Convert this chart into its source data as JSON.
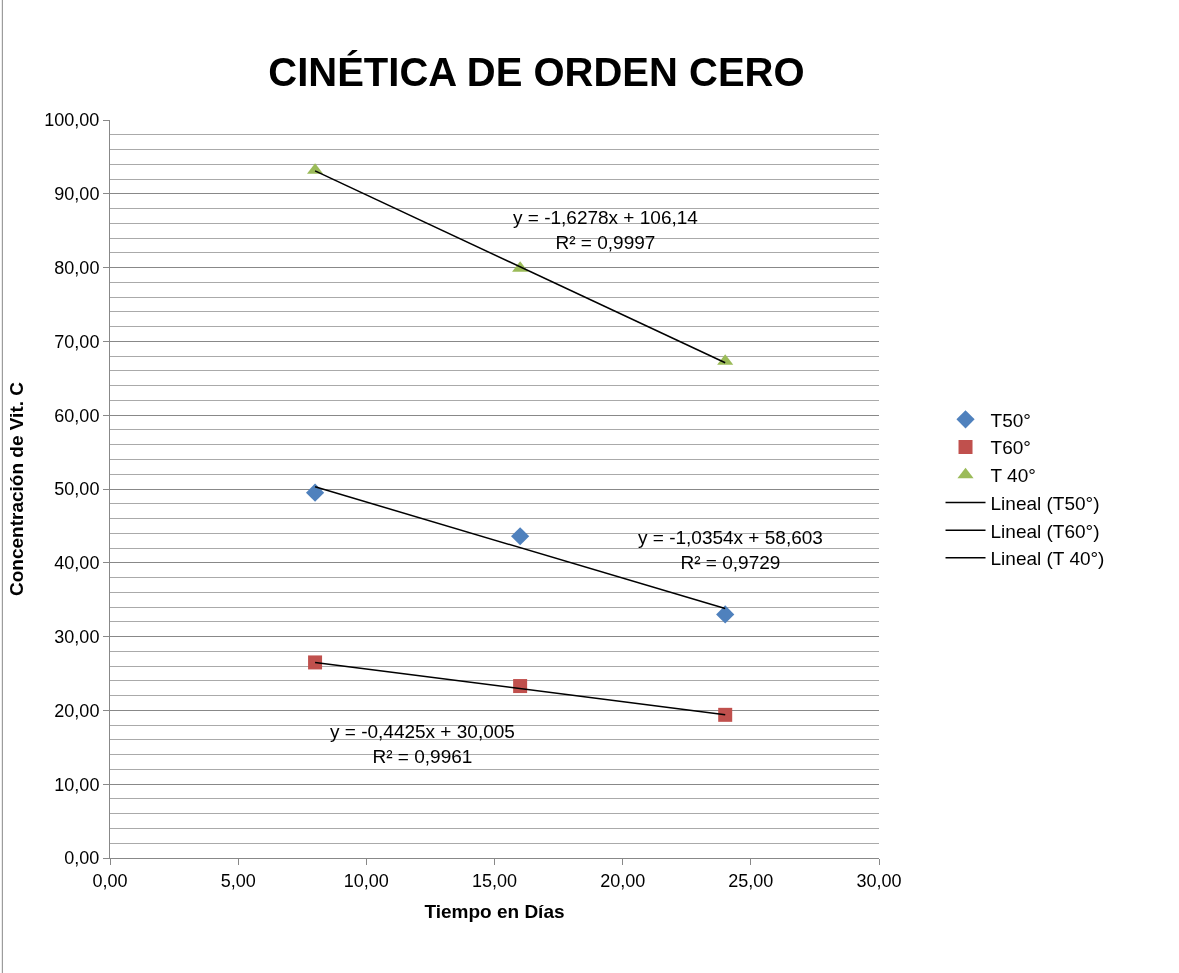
{
  "chart_data": {
    "type": "scatter",
    "title": "CINÉTICA DE ORDEN CERO",
    "xlabel": "Tiempo en Días",
    "ylabel": "Concentración de Vit. C",
    "series": [
      {
        "name": "T50°",
        "color": "#4f81bd",
        "marker": "diamond",
        "x": [
          8,
          16,
          24
        ],
        "values": [
          49.5,
          43.6,
          33.0
        ]
      },
      {
        "name": "T60°",
        "color": "#c0504d",
        "marker": "square",
        "x": [
          8,
          16,
          24
        ],
        "values": [
          26.5,
          23.3,
          19.4
        ]
      },
      {
        "name": "T 40°",
        "color": "#9bbb59",
        "marker": "triangle",
        "x": [
          8,
          16,
          24
        ],
        "values": [
          93.2,
          79.9,
          67.3
        ]
      },
      {
        "name": "Lineal (T50°)",
        "type": "line",
        "color": "#000000",
        "x": [
          8,
          24
        ],
        "values": [
          50.3,
          33.8
        ]
      },
      {
        "name": "Lineal (T60°)",
        "type": "line",
        "color": "#000000",
        "x": [
          8,
          24
        ],
        "values": [
          26.5,
          19.4
        ]
      },
      {
        "name": "Lineal (T 40°)",
        "type": "line",
        "color": "#000000",
        "x": [
          8,
          24
        ],
        "values": [
          93.1,
          67.1
        ]
      }
    ],
    "annotations": [
      "y = -1,6278x + 106,14\nR² = 0,9997",
      "y = -1,0354x + 58,603\nR² = 0,9729",
      "y = -0,4425x + 30,005\nR² = 0,9961"
    ],
    "xlim": [
      0,
      30
    ],
    "ylim": [
      0,
      100
    ],
    "xticks": [
      {
        "value": 0,
        "label": "0,00"
      },
      {
        "value": 5,
        "label": "5,00"
      },
      {
        "value": 10,
        "label": "10,00"
      },
      {
        "value": 15,
        "label": "15,00"
      },
      {
        "value": 20,
        "label": "20,00"
      },
      {
        "value": 25,
        "label": "25,00"
      },
      {
        "value": 30,
        "label": "30,00"
      }
    ],
    "yticks": [
      {
        "value": 0,
        "label": "0,00"
      },
      {
        "value": 10,
        "label": "10,00"
      },
      {
        "value": 20,
        "label": "20,00"
      },
      {
        "value": 30,
        "label": "30,00"
      },
      {
        "value": 40,
        "label": "40,00"
      },
      {
        "value": 50,
        "label": "50,00"
      },
      {
        "value": 60,
        "label": "60,00"
      },
      {
        "value": 70,
        "label": "70,00"
      },
      {
        "value": 80,
        "label": "80,00"
      },
      {
        "value": 90,
        "label": "90,00"
      },
      {
        "value": 100,
        "label": "100,00"
      }
    ],
    "grid": "y",
    "legend": "right"
  }
}
